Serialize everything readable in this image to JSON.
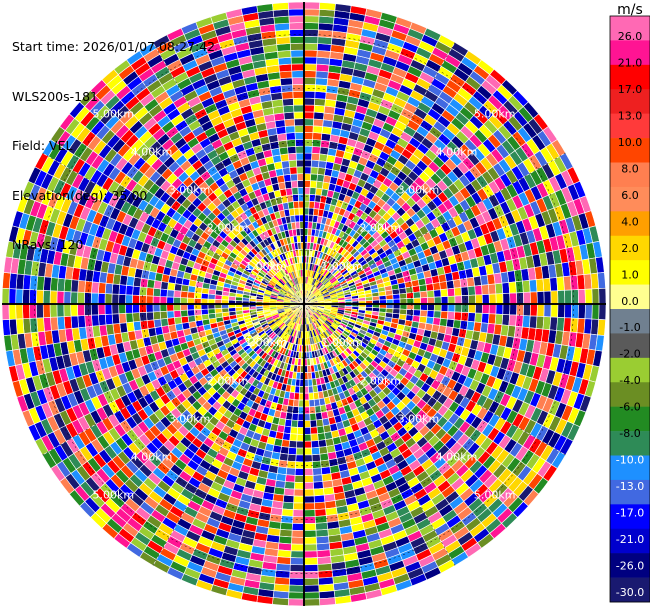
{
  "header": {
    "start_time": "Start time: 2026/01/07 08:27:42",
    "instrument": "WLS200s-181",
    "field": "Field: VEL",
    "elevation": "Elevation(deg): 35.00",
    "nrays": "NRays: 120"
  },
  "chart_data": {
    "type": "heatmap",
    "projection": "polar PPI",
    "rays": 120,
    "range_rings_km": [
      1,
      2,
      3,
      4,
      5
    ],
    "range_ring_labels": [
      "1.00km",
      "2.00km",
      "3.00km",
      "4.00km",
      "5.00km"
    ],
    "range_max_km": 5.6,
    "grid": true,
    "colorbar": {
      "unit": "m/s",
      "placement": "right",
      "ticks": [
        "26.0",
        "21.0",
        "17.0",
        "13.0",
        "10.0",
        "8.0",
        "6.0",
        "4.0",
        "2.0",
        "1.0",
        "0.0",
        "-1.0",
        "-2.0",
        "-4.0",
        "-6.0",
        "-8.0",
        "-10.0",
        "-13.0",
        "-17.0",
        "-21.0",
        "-26.0",
        "-30.0"
      ],
      "colors": [
        "#ff69b4",
        "#ff1493",
        "#ff0000",
        "#ee2020",
        "#ff3a3a",
        "#ff4500",
        "#ff7f50",
        "#ff8c5a",
        "#ff9f00",
        "#ffd700",
        "#ffff00",
        "#ffff90",
        "#708090",
        "#5a5a5a",
        "#9acd32",
        "#6b8e23",
        "#228b22",
        "#2e8b57",
        "#1e90ff",
        "#4169e1",
        "#0000ff",
        "#0000cd",
        "#000080",
        "#191970"
      ]
    }
  }
}
